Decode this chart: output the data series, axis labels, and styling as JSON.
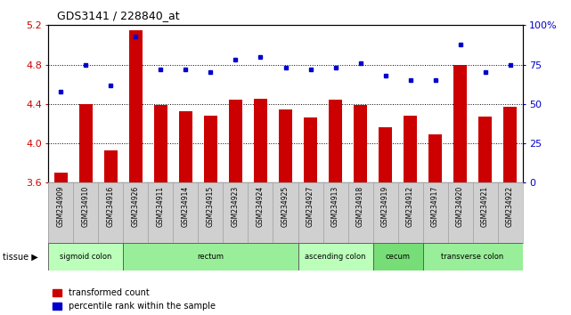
{
  "title": "GDS3141 / 228840_at",
  "samples": [
    "GSM234909",
    "GSM234910",
    "GSM234916",
    "GSM234926",
    "GSM234911",
    "GSM234914",
    "GSM234915",
    "GSM234923",
    "GSM234924",
    "GSM234925",
    "GSM234927",
    "GSM234913",
    "GSM234918",
    "GSM234919",
    "GSM234912",
    "GSM234917",
    "GSM234920",
    "GSM234921",
    "GSM234922"
  ],
  "bar_values": [
    3.7,
    4.4,
    3.93,
    5.15,
    4.39,
    4.33,
    4.28,
    4.44,
    4.45,
    4.34,
    4.26,
    4.44,
    4.39,
    4.16,
    4.28,
    4.09,
    4.8,
    4.27,
    4.37
  ],
  "pct_values": [
    58,
    75,
    62,
    93,
    72,
    72,
    70,
    78,
    80,
    73,
    72,
    73,
    76,
    68,
    65,
    65,
    88,
    70,
    75
  ],
  "y_min": 3.6,
  "y_max": 5.2,
  "y_ticks": [
    3.6,
    4.0,
    4.4,
    4.8,
    5.2
  ],
  "pct_min": 0,
  "pct_max": 100,
  "pct_ticks": [
    0,
    25,
    50,
    75,
    100
  ],
  "bar_color": "#cc0000",
  "dot_color": "#0000cc",
  "tissue_groups": [
    {
      "label": "sigmoid colon",
      "start": 0,
      "end": 3,
      "color": "#bbffbb"
    },
    {
      "label": "rectum",
      "start": 3,
      "end": 10,
      "color": "#99ee99"
    },
    {
      "label": "ascending colon",
      "start": 10,
      "end": 13,
      "color": "#bbffbb"
    },
    {
      "label": "cecum",
      "start": 13,
      "end": 15,
      "color": "#77dd77"
    },
    {
      "label": "transverse colon",
      "start": 15,
      "end": 19,
      "color": "#99ee99"
    }
  ],
  "bar_color_red": "#cc0000",
  "dot_color_blue": "#0000cc",
  "left_label_color": "#cc0000",
  "right_label_color": "#0000cc"
}
